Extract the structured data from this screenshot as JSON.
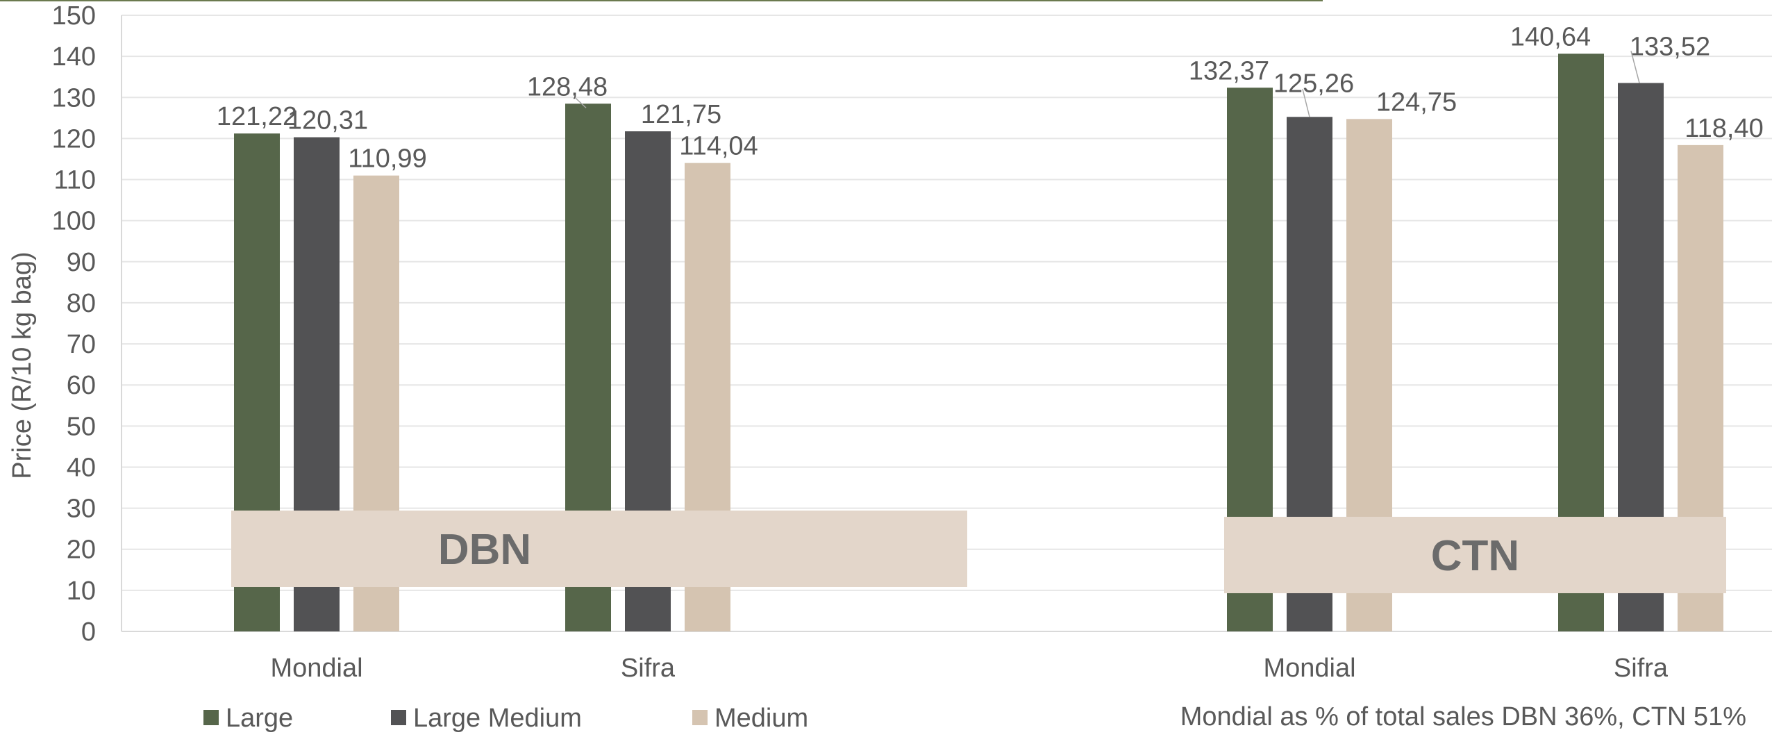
{
  "chart_data": {
    "type": "bar",
    "title": "",
    "ylabel": "Price (R/10 kg bag)",
    "xlabel": "",
    "ylim": [
      0,
      150
    ],
    "yticks": [
      0,
      10,
      20,
      30,
      40,
      50,
      60,
      70,
      80,
      90,
      100,
      110,
      120,
      130,
      140,
      150
    ],
    "grid": true,
    "legend_position": "bottom-left",
    "groups": [
      {
        "label": "DBN",
        "categories": [
          {
            "label": "Mondial",
            "values": [
              121.22,
              120.31,
              110.99
            ],
            "labels": [
              "121,22",
              "120,31",
              "110,99"
            ]
          },
          {
            "label": "Sifra",
            "values": [
              128.48,
              121.75,
              114.04
            ],
            "labels": [
              "128,48",
              "121,75",
              "114,04"
            ]
          }
        ]
      },
      {
        "label": "CTN",
        "categories": [
          {
            "label": "Mondial",
            "values": [
              132.37,
              125.26,
              124.75
            ],
            "labels": [
              "132,37",
              "125,26",
              "124,75"
            ]
          },
          {
            "label": "Sifra",
            "values": [
              140.64,
              133.52,
              118.4
            ],
            "labels": [
              "140,64",
              "133,52",
              "118,40"
            ]
          }
        ]
      }
    ],
    "series": [
      {
        "name": "Large",
        "color": "#56664a"
      },
      {
        "name": "Large Medium",
        "color": "#525254"
      },
      {
        "name": "Medium",
        "color": "#d5c4b1"
      }
    ],
    "annotation": "Mondial as % of total sales DBN 36%, CTN 51%"
  },
  "colors": {
    "axis": "#d9d9d9",
    "grid": "#e6e6e6",
    "text": "#595959",
    "group_box": "#e3d6ca",
    "group_text": "#6b6b6b",
    "top_rule": "#6b7a4f"
  }
}
